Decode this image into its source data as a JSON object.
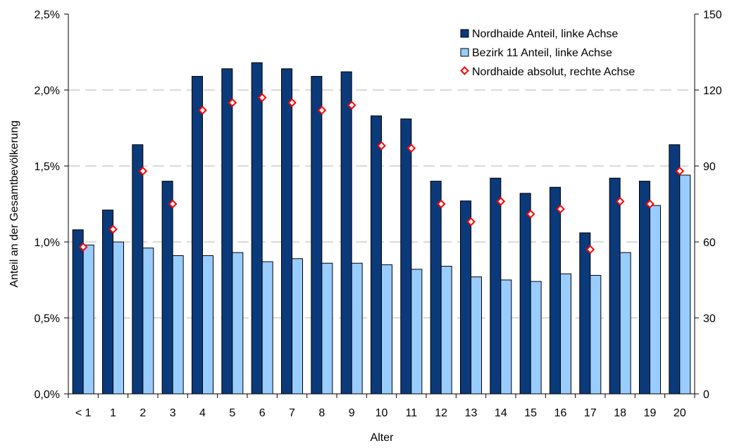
{
  "chart_data": {
    "type": "bar",
    "xlabel": "Alter",
    "ylabel": "Anteil an der Gesamtbevölkerung",
    "ylim": [
      0,
      2.5
    ],
    "y2lim": [
      0,
      150
    ],
    "y_ticks": [
      "0,0%",
      "0,5%",
      "1,0%",
      "1,5%",
      "2,0%",
      "2,5%"
    ],
    "y2_ticks": [
      "0",
      "30",
      "60",
      "90",
      "120",
      "150"
    ],
    "grid": "horizontal dashed",
    "legend_position": "top-right",
    "categories": [
      "< 1",
      "1",
      "2",
      "3",
      "4",
      "5",
      "6",
      "7",
      "8",
      "9",
      "10",
      "11",
      "12",
      "13",
      "14",
      "15",
      "16",
      "17",
      "18",
      "19",
      "20"
    ],
    "series": [
      {
        "name": "Nordhaide Anteil, linke Achse",
        "kind": "bar",
        "axis": "left",
        "color": "#0b3a7a",
        "values": [
          1.08,
          1.21,
          1.64,
          1.4,
          2.09,
          2.14,
          2.18,
          2.14,
          2.09,
          2.12,
          1.83,
          1.81,
          1.4,
          1.27,
          1.42,
          1.32,
          1.36,
          1.06,
          1.42,
          1.4,
          1.64
        ]
      },
      {
        "name": "Bezirk 11 Anteil, linke Achse",
        "kind": "bar",
        "axis": "left",
        "color": "#99ccff",
        "values": [
          0.98,
          1.0,
          0.96,
          0.91,
          0.91,
          0.93,
          0.87,
          0.89,
          0.86,
          0.86,
          0.85,
          0.82,
          0.84,
          0.77,
          0.75,
          0.74,
          0.79,
          0.78,
          0.93,
          1.24,
          1.44
        ]
      },
      {
        "name": "Nordhaide absolut, rechte Achse",
        "kind": "marker",
        "axis": "right",
        "color": "#ff0000",
        "values": [
          58,
          65,
          88,
          75,
          112,
          115,
          117,
          115,
          112,
          114,
          98,
          97,
          75,
          68,
          76,
          71,
          73,
          57,
          76,
          75,
          88
        ]
      }
    ]
  }
}
